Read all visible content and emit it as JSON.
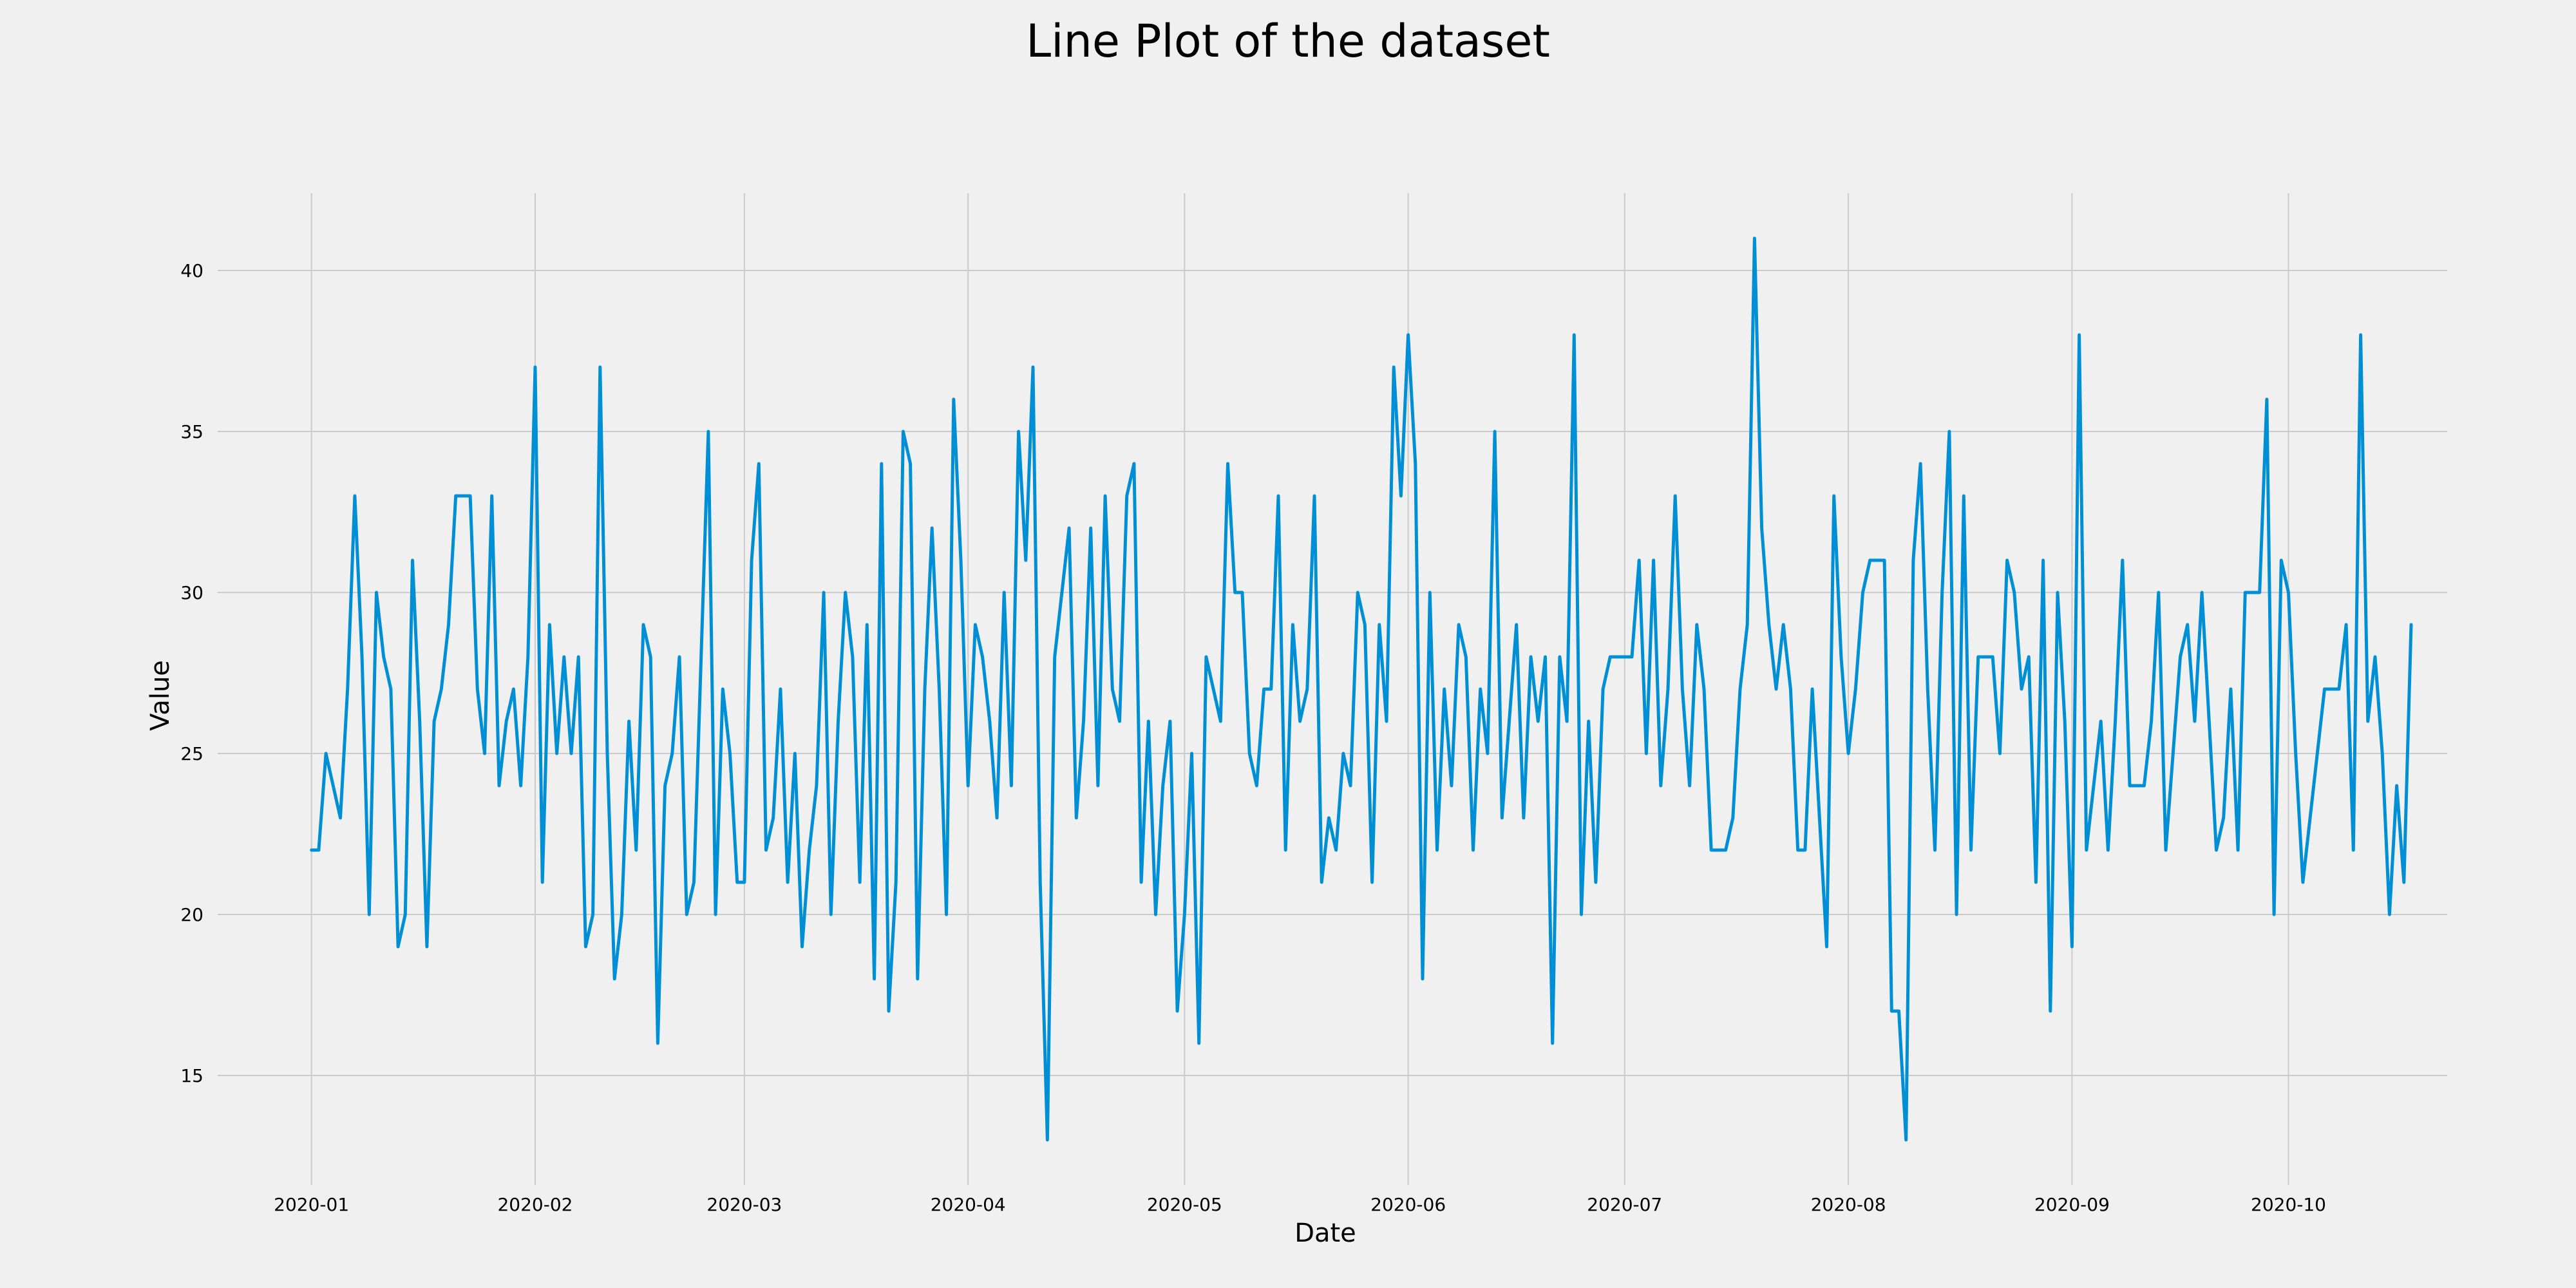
{
  "chart_data": {
    "type": "line",
    "title": "Line Plot of the dataset",
    "xlabel": "Date",
    "ylabel": "Value",
    "x_start": "2020-01-01",
    "x_end": "2020-10-10",
    "xlim": [
      "2019-12-19",
      "2020-10-23"
    ],
    "ylim": [
      11.6,
      42.4
    ],
    "x_ticks": [
      "2020-01",
      "2020-02",
      "2020-03",
      "2020-04",
      "2020-05",
      "2020-06",
      "2020-07",
      "2020-08",
      "2020-09",
      "2020-10"
    ],
    "y_ticks": [
      15,
      20,
      25,
      30,
      35,
      40
    ],
    "grid": true,
    "line_color": "#008fd5",
    "background_color": "#f0f0f0",
    "grid_color": "#cbcbcb",
    "series": [
      {
        "values": [
          22,
          22,
          25,
          24,
          23,
          27,
          33,
          28,
          20,
          30,
          28,
          27,
          19,
          20,
          31,
          26,
          19,
          26,
          27,
          29,
          33,
          33,
          33,
          27,
          25,
          33,
          24,
          26,
          27,
          24,
          28,
          37,
          21,
          29,
          25,
          28,
          25,
          28,
          19,
          20,
          37,
          25,
          18,
          20,
          26,
          22,
          29,
          28,
          16,
          24,
          25,
          28,
          20,
          21,
          28,
          35,
          20,
          27,
          25,
          21,
          21,
          31,
          34,
          22,
          23,
          27,
          21,
          25,
          19,
          22,
          24,
          30,
          20,
          26,
          30,
          28,
          21,
          29,
          18,
          34,
          17,
          21,
          35,
          34,
          18,
          27,
          32,
          27,
          20,
          36,
          31,
          24,
          29,
          28,
          26,
          23,
          30,
          24,
          35,
          31,
          37,
          21,
          13,
          28,
          30,
          32,
          23,
          26,
          32,
          24,
          33,
          27,
          26,
          33,
          34,
          21,
          26,
          20,
          24,
          26,
          17,
          20,
          25,
          16,
          28,
          27,
          26,
          34,
          30,
          30,
          25,
          24,
          27,
          27,
          33,
          22,
          29,
          26,
          27,
          33,
          21,
          23,
          22,
          25,
          24,
          30,
          29,
          21,
          29,
          26,
          37,
          33,
          38,
          34,
          18,
          30,
          22,
          27,
          24,
          29,
          28,
          22,
          27,
          25,
          35,
          23,
          26,
          29,
          23,
          28,
          26,
          28,
          16,
          28,
          26,
          38,
          20,
          26,
          21,
          27,
          28,
          28,
          28,
          28,
          31,
          25,
          31,
          24,
          27,
          33,
          27,
          24,
          29,
          27,
          22,
          22,
          22,
          23,
          27,
          29,
          41,
          32,
          29,
          27,
          29,
          27,
          22,
          22,
          27,
          23,
          19,
          33,
          28,
          25,
          27,
          30,
          31,
          31,
          31,
          17,
          17,
          13,
          31,
          34,
          27,
          22,
          30,
          35,
          20,
          33,
          22,
          28,
          28,
          28,
          25,
          31,
          30,
          27,
          28,
          21,
          31,
          17,
          30,
          26,
          19,
          38,
          22,
          24,
          26,
          22,
          26,
          31,
          24,
          24,
          24,
          26,
          30,
          22,
          25,
          28,
          29,
          26,
          30,
          26,
          22,
          23,
          27,
          22,
          30,
          30,
          30,
          36,
          20,
          31,
          30,
          25,
          21,
          23,
          25,
          27,
          27,
          27,
          29,
          22,
          38,
          26,
          28,
          25,
          20,
          24,
          21,
          29
        ]
      }
    ]
  }
}
